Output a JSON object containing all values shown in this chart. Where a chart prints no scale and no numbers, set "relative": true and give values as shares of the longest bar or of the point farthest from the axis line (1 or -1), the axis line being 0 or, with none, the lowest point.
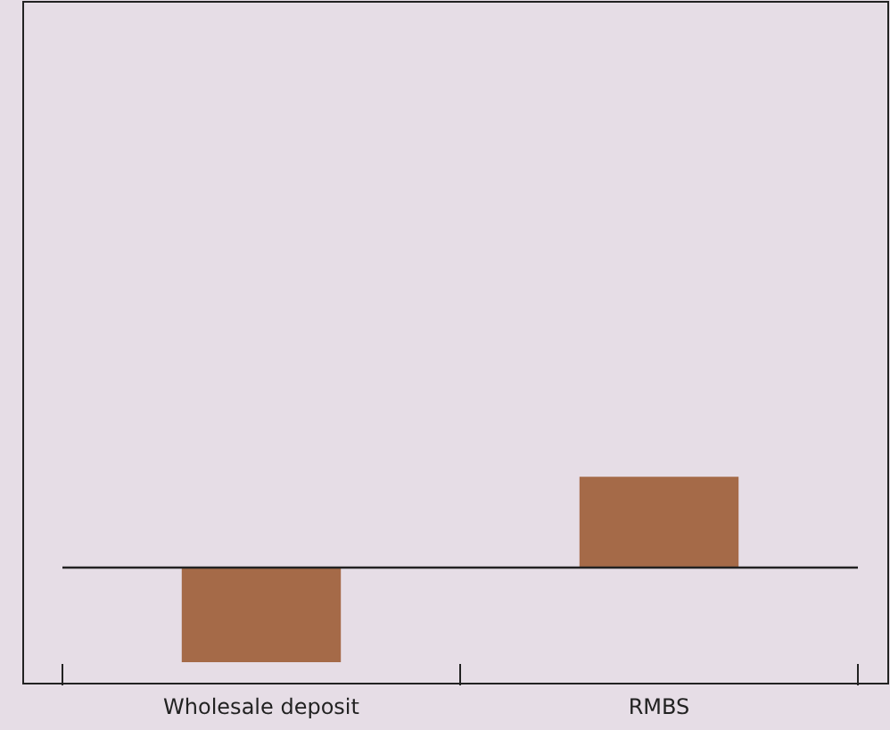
{
  "chart_data": {
    "type": "bar",
    "categories": [
      "Wholesale deposit",
      "RMBS"
    ],
    "relative": true,
    "series": [
      {
        "color": "#a56a48",
        "values": [
          -1,
          0.96
        ]
      }
    ],
    "grid": false
  }
}
